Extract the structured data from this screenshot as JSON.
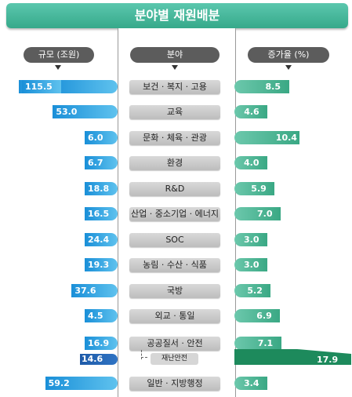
{
  "title": "분야별 재원배분",
  "headers": {
    "left": "규모 (조원)",
    "center": "분야",
    "right": "증가율 (%)"
  },
  "chart_data": {
    "type": "bar",
    "title": "분야별 재원배분",
    "categories": [
      "보건 · 복지 · 고용",
      "교육",
      "문화 · 체육 · 관광",
      "환경",
      "R&D",
      "산업 · 중소기업 · 에너지",
      "SOC",
      "농림 · 수산 · 식품",
      "국방",
      "외교 · 통일",
      "공공질서 · 안전",
      "일반 · 지방행정"
    ],
    "series": [
      {
        "name": "규모 (조원)",
        "values": [
          "115.5",
          "53.0",
          "6.0",
          "6.7",
          "18.8",
          "16.5",
          "24.4",
          "19.3",
          "37.6",
          "4.5",
          "16.9",
          "59.2"
        ]
      },
      {
        "name": "증가율 (%)",
        "values": [
          "8.5",
          "4.6",
          "10.4",
          "4.0",
          "5.9",
          "7.0",
          "3.0",
          "3.0",
          "5.2",
          "6.9",
          "7.1",
          "3.4"
        ]
      }
    ],
    "sub_item": {
      "parent": "공공질서 · 안전",
      "label": "재난안전",
      "scale": "14.6",
      "growth": "17.9"
    },
    "bar_scale_note": "115.5 bar is truncated (broken bar)"
  }
}
